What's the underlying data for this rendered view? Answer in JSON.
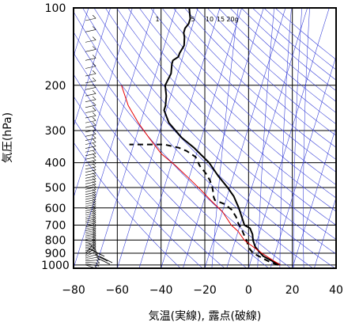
{
  "chart_data": {
    "type": "line",
    "title": "",
    "xlabel": "気温(実線), 露点(破線)",
    "ylabel": "気圧(hPa)",
    "xlim": [
      -80,
      40
    ],
    "ylim": [
      1030,
      100
    ],
    "y_scale": "log",
    "grid": true,
    "x_ticks": [
      -80,
      -60,
      -40,
      -20,
      0,
      20,
      40
    ],
    "x_tick_labels": [
      "−80",
      "−60",
      "−40",
      "−20",
      "0",
      "20",
      "40"
    ],
    "y_ticks": [
      100,
      200,
      300,
      400,
      500,
      600,
      700,
      800,
      900,
      1000
    ],
    "y_tick_labels": [
      "100",
      "200",
      "300",
      "400",
      "500",
      "600",
      "700",
      "800",
      "900",
      "1000"
    ],
    "mixing_ratio_labels": [
      "1",
      "5",
      "10",
      "15",
      "20g"
    ],
    "series": [
      {
        "kind": "temperature",
        "style": "solid",
        "color": "#000000",
        "points": [
          [
            14,
            1000
          ],
          [
            11,
            975
          ],
          [
            8,
            950
          ],
          [
            5,
            925
          ],
          [
            2,
            880
          ],
          [
            0,
            850
          ],
          [
            -2,
            800
          ],
          [
            -3,
            760
          ],
          [
            -5,
            720
          ],
          [
            -8,
            700
          ],
          [
            -13,
            600
          ],
          [
            -17,
            540
          ],
          [
            -21,
            500
          ],
          [
            -27,
            450
          ],
          [
            -33,
            400
          ],
          [
            -42,
            350
          ],
          [
            -49,
            320
          ],
          [
            -57,
            280
          ],
          [
            -61,
            250
          ],
          [
            -61,
            240
          ],
          [
            -62,
            220
          ],
          [
            -64,
            200
          ],
          [
            -63,
            180
          ],
          [
            -64,
            165
          ],
          [
            -64,
            160
          ],
          [
            -62,
            155
          ],
          [
            -62,
            150
          ],
          [
            -61,
            140
          ],
          [
            -62,
            130
          ],
          [
            -63,
            125
          ],
          [
            -63,
            120
          ],
          [
            -62,
            115
          ],
          [
            -62,
            110
          ],
          [
            -63,
            105
          ],
          [
            -64,
            100
          ]
        ]
      },
      {
        "kind": "dewpoint",
        "style": "dashed",
        "color": "#000000",
        "points": [
          [
            13,
            1000
          ],
          [
            9,
            975
          ],
          [
            6,
            950
          ],
          [
            3,
            925
          ],
          [
            0,
            900
          ],
          [
            -2,
            870
          ],
          [
            -3,
            850
          ],
          [
            -5,
            800
          ],
          [
            -7,
            760
          ],
          [
            -9,
            720
          ],
          [
            -11,
            690
          ],
          [
            -13,
            650
          ],
          [
            -16,
            610
          ],
          [
            -20,
            580
          ],
          [
            -25,
            560
          ],
          [
            -26,
            545
          ],
          [
            -27,
            520
          ],
          [
            -28,
            500
          ],
          [
            -30,
            470
          ],
          [
            -33,
            440
          ],
          [
            -37,
            410
          ],
          [
            -40,
            380
          ],
          [
            -45,
            360
          ],
          [
            -49,
            350
          ],
          [
            -56,
            340
          ],
          [
            -65,
            340
          ],
          [
            -72,
            340
          ]
        ]
      },
      {
        "kind": "parcel-path",
        "style": "solid",
        "color": "#e60000",
        "points": [
          [
            14,
            1000
          ],
          [
            10,
            960
          ],
          [
            7,
            930
          ],
          [
            4,
            900
          ],
          [
            1,
            870
          ],
          [
            -1,
            850
          ],
          [
            -6,
            800
          ],
          [
            -10,
            740
          ],
          [
            -14,
            700
          ],
          [
            -20,
            620
          ],
          [
            -27,
            560
          ],
          [
            -33,
            510
          ],
          [
            -40,
            460
          ],
          [
            -48,
            410
          ],
          [
            -56,
            370
          ],
          [
            -64,
            320
          ],
          [
            -71,
            280
          ],
          [
            -78,
            240
          ],
          [
            -84,
            200
          ]
        ]
      }
    ],
    "wind_barbs": "wind profile plotted at x≈−73 from 1000 hPa to 100 hPa"
  }
}
